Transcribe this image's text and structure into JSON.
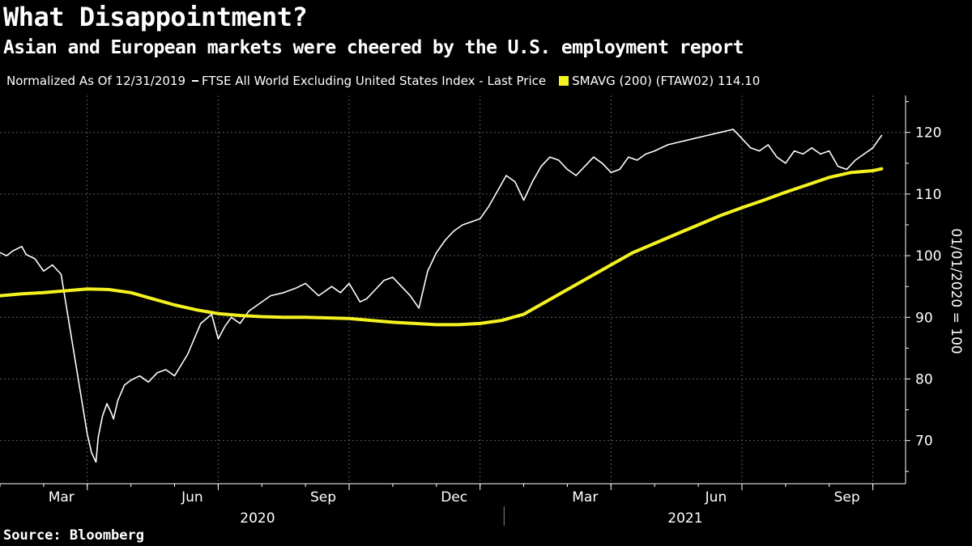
{
  "title": "What Disappointment?",
  "subtitle": "Asian and European markets were cheered by the U.S. employment report",
  "legend": {
    "normalized": "Normalized As Of 12/31/2019",
    "series1": "FTSE All World Excluding United States Index - Last Price",
    "series2": "SMAVG (200) (FTAW02) 114.10"
  },
  "source": "Source: Bloomberg",
  "colors": {
    "background": "#000000",
    "price": "#ffffff",
    "sma": "#f5f221",
    "grid": "#5a5a5a"
  },
  "chart_data": {
    "type": "line",
    "ylabel": "01/01/2020 = 100",
    "ylim": [
      63,
      126
    ],
    "y_ticks": [
      70,
      80,
      90,
      100,
      110,
      120
    ],
    "xlim": [
      0,
      20.75
    ],
    "x_ticks": [
      {
        "label": "Mar",
        "x": 2
      },
      {
        "label": "Jun",
        "x": 5
      },
      {
        "label": "Sep",
        "x": 8
      },
      {
        "label": "Dec",
        "x": 11
      },
      {
        "label": "Mar",
        "x": 14
      },
      {
        "label": "Jun",
        "x": 17
      },
      {
        "label": "Sep",
        "x": 20
      }
    ],
    "year_labels": [
      {
        "label": "2020",
        "x": 5.9
      },
      {
        "label": "2021",
        "x": 15.7
      }
    ],
    "year_divider_x": 11.55,
    "series": [
      {
        "name": "FTSE All World Excluding United States Index - Last Price",
        "x": [
          0,
          0.15,
          0.3,
          0.5,
          0.6,
          0.8,
          1.0,
          1.2,
          1.4,
          1.55,
          1.7,
          1.85,
          2.0,
          2.1,
          2.2,
          2.25,
          2.35,
          2.45,
          2.55,
          2.6,
          2.7,
          2.85,
          3.0,
          3.2,
          3.4,
          3.6,
          3.8,
          4.0,
          4.3,
          4.6,
          4.85,
          5.0,
          5.15,
          5.3,
          5.5,
          5.7,
          5.9,
          6.2,
          6.5,
          6.8,
          7.0,
          7.3,
          7.6,
          7.8,
          8.0,
          8.25,
          8.4,
          8.6,
          8.8,
          9.0,
          9.2,
          9.4,
          9.6,
          9.8,
          10.0,
          10.2,
          10.4,
          10.6,
          10.8,
          11.0,
          11.2,
          11.4,
          11.6,
          11.8,
          12.0,
          12.2,
          12.4,
          12.6,
          12.8,
          13.0,
          13.2,
          13.4,
          13.6,
          13.8,
          14.0,
          14.2,
          14.4,
          14.6,
          14.8,
          15.0,
          15.3,
          15.6,
          15.9,
          16.2,
          16.5,
          16.8,
          17.0,
          17.2,
          17.4,
          17.6,
          17.8,
          18.0,
          18.2,
          18.4,
          18.6,
          18.8,
          19.0,
          19.2,
          19.4,
          19.6,
          19.8,
          20.0,
          20.1,
          20.2
        ],
        "values": [
          100.5,
          100.0,
          100.8,
          101.5,
          100.2,
          99.5,
          97.5,
          98.5,
          97.0,
          90.5,
          84.0,
          77.5,
          71.0,
          68.0,
          66.5,
          70.5,
          74.0,
          76.0,
          74.5,
          73.5,
          76.5,
          79.0,
          79.8,
          80.5,
          79.5,
          81.0,
          81.5,
          80.5,
          84.0,
          89.0,
          90.5,
          86.5,
          88.5,
          90.0,
          89.0,
          91.0,
          92.0,
          93.5,
          94.0,
          94.8,
          95.5,
          93.5,
          95.0,
          94.0,
          95.5,
          92.5,
          93.0,
          94.5,
          96.0,
          96.5,
          95.0,
          93.5,
          91.5,
          97.5,
          100.5,
          102.5,
          104.0,
          105.0,
          105.5,
          106.0,
          108.0,
          110.5,
          113.0,
          112.0,
          109.0,
          112.0,
          114.5,
          116.0,
          115.5,
          114.0,
          113.0,
          114.5,
          116.0,
          115.0,
          113.5,
          114.0,
          116.0,
          115.5,
          116.5,
          117.0,
          118.0,
          118.5,
          119.0,
          119.5,
          120.0,
          120.5,
          119.0,
          117.5,
          117.0,
          118.0,
          116.0,
          115.0,
          117.0,
          116.5,
          117.5,
          116.5,
          117.0,
          114.5,
          114.0,
          115.5,
          116.5,
          117.5,
          118.5,
          119.5
        ]
      },
      {
        "name": "SMAVG (200) (FTAW02) 114.10",
        "x": [
          0,
          0.5,
          1.0,
          1.5,
          2.0,
          2.5,
          3.0,
          3.5,
          4.0,
          4.5,
          5.0,
          5.5,
          6.0,
          6.5,
          7.0,
          7.5,
          8.0,
          8.5,
          9.0,
          9.5,
          10.0,
          10.5,
          11.0,
          11.5,
          12.0,
          12.5,
          13.0,
          13.5,
          14.0,
          14.5,
          15.0,
          15.5,
          16.0,
          16.5,
          17.0,
          17.5,
          18.0,
          18.5,
          19.0,
          19.5,
          20.0,
          20.2
        ],
        "values": [
          93.5,
          93.8,
          94.0,
          94.3,
          94.6,
          94.5,
          94.0,
          93.0,
          92.0,
          91.2,
          90.6,
          90.3,
          90.1,
          90.0,
          90.0,
          89.9,
          89.8,
          89.5,
          89.2,
          89.0,
          88.8,
          88.8,
          89.0,
          89.5,
          90.5,
          92.5,
          94.5,
          96.5,
          98.5,
          100.5,
          102.0,
          103.5,
          105.0,
          106.5,
          107.8,
          109.0,
          110.3,
          111.5,
          112.7,
          113.5,
          113.8,
          114.1
        ]
      }
    ]
  }
}
